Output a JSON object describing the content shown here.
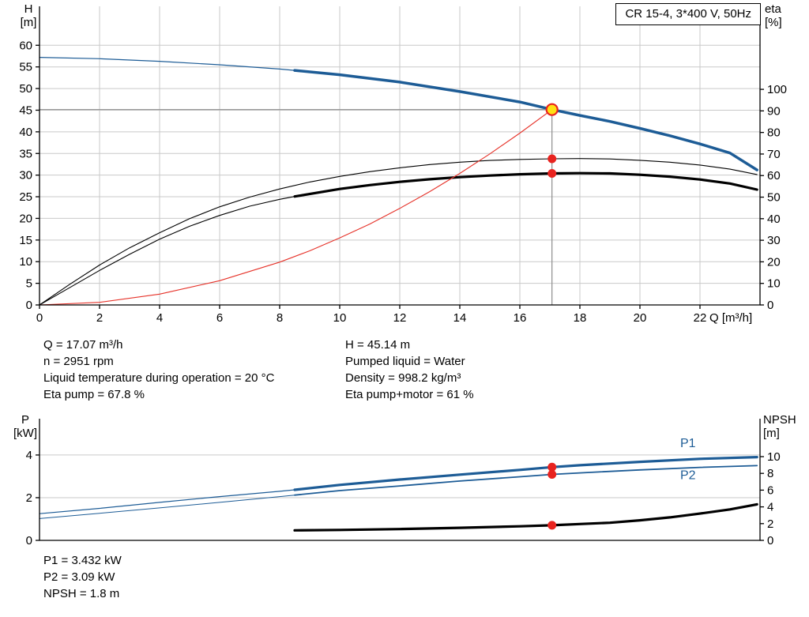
{
  "colors": {
    "curve_blue": "#1d5c96",
    "curve_red": "#e63229",
    "curve_black": "#000000",
    "grid": "#c9c9c9",
    "crosshair": "#8c8c8c",
    "marker_red": "#e8231f",
    "marker_yellow": "#ffe014",
    "axis": "#000000"
  },
  "info_top": {
    "left": [
      "Q = 17.07 m³/h",
      "n = 2951 rpm",
      "Liquid temperature during operation = 20 °C",
      "Eta pump = 67.8 %"
    ],
    "right": [
      "H = 45.14 m",
      "Pumped liquid = Water",
      "Density = 998.2 kg/m³",
      "Eta pump+motor = 61 %"
    ]
  },
  "info_bottom": [
    "P1 = 3.432 kW",
    "P2 = 3.09 kW",
    "NPSH = 1.8 m"
  ],
  "chart_data": [
    {
      "type": "line",
      "title": "CR 15-4, 3*400 V, 50Hz",
      "x_axis": {
        "label": "Q [m³/h]",
        "min": 0,
        "max": 24,
        "ticks": [
          0,
          2,
          4,
          6,
          8,
          10,
          12,
          14,
          16,
          18,
          20,
          22
        ],
        "show_labels": true,
        "grid": true
      },
      "y_left": {
        "label_lines": [
          "H",
          "[m]"
        ],
        "min": 0,
        "max": 69,
        "ticks": [
          0,
          5,
          10,
          15,
          20,
          25,
          30,
          35,
          40,
          45,
          50,
          55,
          60
        ],
        "grid": true
      },
      "y_right": {
        "label_lines": [
          "eta",
          "[%]"
        ],
        "min": 0,
        "max": 138.5,
        "ticks": [
          0,
          10,
          20,
          30,
          40,
          50,
          60,
          70,
          80,
          90,
          100
        ]
      },
      "series": [
        {
          "name": "pump-hq-curve",
          "color_key": "curve_blue",
          "axis": "left",
          "segments": [
            {
              "width": 1.2,
              "points": [
                [
                  0,
                  57.2
                ],
                [
                  2,
                  56.9
                ],
                [
                  4,
                  56.3
                ],
                [
                  6,
                  55.5
                ],
                [
                  8,
                  54.5
                ],
                [
                  8.5,
                  54.2
                ]
              ]
            },
            {
              "width": 3.5,
              "points": [
                [
                  8.5,
                  54.2
                ],
                [
                  10,
                  53.2
                ],
                [
                  12,
                  51.5
                ],
                [
                  14,
                  49.3
                ],
                [
                  16,
                  46.9
                ],
                [
                  17.07,
                  45.14
                ],
                [
                  18,
                  43.8
                ],
                [
                  19,
                  42.4
                ],
                [
                  20,
                  40.8
                ],
                [
                  21,
                  39.1
                ],
                [
                  22,
                  37.2
                ],
                [
                  23,
                  35.1
                ],
                [
                  23.9,
                  31.2
                ]
              ]
            }
          ]
        },
        {
          "name": "eta-pump-curve",
          "color_key": "curve_black",
          "axis": "right",
          "segments": [
            {
              "width": 1.1,
              "points": [
                [
                  0,
                  0
                ],
                [
                  1,
                  9.5
                ],
                [
                  2,
                  18.5
                ],
                [
                  3,
                  26.5
                ],
                [
                  4,
                  33.5
                ],
                [
                  5,
                  40
                ],
                [
                  6,
                  45.5
                ],
                [
                  7,
                  50
                ],
                [
                  8,
                  53.8
                ],
                [
                  9,
                  57
                ],
                [
                  10,
                  59.6
                ],
                [
                  11,
                  61.8
                ],
                [
                  12,
                  63.6
                ],
                [
                  13,
                  65.1
                ],
                [
                  14,
                  66.2
                ],
                [
                  15,
                  67
                ],
                [
                  16,
                  67.5
                ],
                [
                  17.07,
                  67.8
                ],
                [
                  18,
                  67.9
                ],
                [
                  19,
                  67.7
                ],
                [
                  20,
                  67.1
                ],
                [
                  21,
                  66.2
                ],
                [
                  22,
                  64.9
                ],
                [
                  23,
                  63
                ],
                [
                  23.9,
                  60.5
                ]
              ]
            }
          ]
        },
        {
          "name": "eta-pump-motor-curve",
          "color_key": "curve_black",
          "axis": "right",
          "segments": [
            {
              "width": 1.1,
              "points": [
                [
                  0,
                  0
                ],
                [
                  1,
                  8
                ],
                [
                  2,
                  16
                ],
                [
                  3,
                  23.5
                ],
                [
                  4,
                  30.5
                ],
                [
                  5,
                  36.5
                ],
                [
                  6,
                  41.5
                ],
                [
                  7,
                  45.8
                ],
                [
                  8,
                  49
                ],
                [
                  8.5,
                  50.3
                ]
              ]
            },
            {
              "width": 3.2,
              "points": [
                [
                  8.5,
                  50.3
                ],
                [
                  10,
                  53.8
                ],
                [
                  11,
                  55.6
                ],
                [
                  12,
                  57.1
                ],
                [
                  13,
                  58.3
                ],
                [
                  14,
                  59.3
                ],
                [
                  15,
                  60
                ],
                [
                  16,
                  60.6
                ],
                [
                  17.07,
                  61
                ],
                [
                  18,
                  61.1
                ],
                [
                  19,
                  61
                ],
                [
                  20,
                  60.4
                ],
                [
                  21,
                  59.5
                ],
                [
                  22,
                  58.2
                ],
                [
                  23,
                  56.3
                ],
                [
                  23.9,
                  53.5
                ]
              ]
            }
          ]
        },
        {
          "name": "system-resistance-curve",
          "color_key": "curve_red",
          "axis": "left",
          "segments": [
            {
              "width": 1.1,
              "points": [
                [
                  0,
                  0
                ],
                [
                  2,
                  0.6
                ],
                [
                  4,
                  2.5
                ],
                [
                  6,
                  5.6
                ],
                [
                  8,
                  9.9
                ],
                [
                  9,
                  12.5
                ],
                [
                  10,
                  15.5
                ],
                [
                  11,
                  18.7
                ],
                [
                  12,
                  22.3
                ],
                [
                  13,
                  26.2
                ],
                [
                  14,
                  30.4
                ],
                [
                  15,
                  34.9
                ],
                [
                  16,
                  39.7
                ],
                [
                  17.07,
                  45.14
                ]
              ]
            }
          ]
        }
      ],
      "crosshair": {
        "x": 17.07,
        "value": 45.14,
        "axis": "left"
      },
      "markers": [
        {
          "name": "duty-point",
          "x": 17.07,
          "value": 45.14,
          "axis": "left",
          "r": 7,
          "fill_key": "marker_yellow",
          "stroke_key": "marker_red",
          "stroke_width": 2.2
        },
        {
          "name": "eta-pump-point",
          "x": 17.07,
          "value": 67.8,
          "axis": "right",
          "r": 5.5,
          "fill_key": "marker_red"
        },
        {
          "name": "eta-pump-motor-point",
          "x": 17.07,
          "value": 61,
          "axis": "right",
          "r": 5.5,
          "fill_key": "marker_red"
        }
      ],
      "annotations": []
    },
    {
      "type": "line",
      "title": "",
      "x_axis": {
        "label": "",
        "min": 0,
        "max": 24,
        "ticks": [],
        "show_labels": false,
        "grid": false
      },
      "y_left": {
        "label_lines": [
          "P",
          "[kW]"
        ],
        "min": 0,
        "max": 5.7,
        "ticks": [
          0,
          2,
          4
        ],
        "grid": true
      },
      "y_right": {
        "label_lines": [
          "NPSH",
          "[m]"
        ],
        "min": 0,
        "max": 14.53,
        "ticks": [
          0,
          2,
          4,
          6,
          8,
          10
        ]
      },
      "series": [
        {
          "name": "p1-power-curve",
          "color_key": "curve_blue",
          "axis": "left",
          "segments": [
            {
              "width": 1.2,
              "points": [
                [
                  0,
                  1.25
                ],
                [
                  2,
                  1.5
                ],
                [
                  4,
                  1.78
                ],
                [
                  6,
                  2.05
                ],
                [
                  8,
                  2.3
                ],
                [
                  8.5,
                  2.37
                ]
              ]
            },
            {
              "width": 3.2,
              "points": [
                [
                  8.5,
                  2.37
                ],
                [
                  10,
                  2.6
                ],
                [
                  12,
                  2.85
                ],
                [
                  14,
                  3.08
                ],
                [
                  16,
                  3.3
                ],
                [
                  17.07,
                  3.432
                ],
                [
                  18,
                  3.52
                ],
                [
                  20,
                  3.68
                ],
                [
                  22,
                  3.82
                ],
                [
                  23.9,
                  3.9
                ]
              ]
            }
          ]
        },
        {
          "name": "p2-power-curve",
          "color_key": "curve_blue",
          "axis": "left",
          "segments": [
            {
              "width": 1,
              "points": [
                [
                  0,
                  1.02
                ],
                [
                  2,
                  1.27
                ],
                [
                  4,
                  1.52
                ],
                [
                  6,
                  1.78
                ],
                [
                  8,
                  2.05
                ],
                [
                  8.5,
                  2.12
                ]
              ]
            },
            {
              "width": 1.8,
              "points": [
                [
                  8.5,
                  2.12
                ],
                [
                  10,
                  2.33
                ],
                [
                  12,
                  2.55
                ],
                [
                  14,
                  2.78
                ],
                [
                  16,
                  2.98
                ],
                [
                  17.07,
                  3.09
                ],
                [
                  18,
                  3.16
                ],
                [
                  20,
                  3.3
                ],
                [
                  22,
                  3.42
                ],
                [
                  23.9,
                  3.5
                ]
              ]
            }
          ]
        },
        {
          "name": "npsh-curve",
          "color_key": "curve_black",
          "axis": "right",
          "segments": [
            {
              "width": 3.2,
              "points": [
                [
                  8.5,
                  1.2
                ],
                [
                  10,
                  1.25
                ],
                [
                  12,
                  1.35
                ],
                [
                  14,
                  1.5
                ],
                [
                  16,
                  1.68
                ],
                [
                  17.07,
                  1.8
                ],
                [
                  18,
                  1.95
                ],
                [
                  19,
                  2.1
                ],
                [
                  20,
                  2.4
                ],
                [
                  21,
                  2.75
                ],
                [
                  22,
                  3.2
                ],
                [
                  23,
                  3.7
                ],
                [
                  23.9,
                  4.3
                ]
              ]
            }
          ]
        }
      ],
      "markers": [
        {
          "name": "p1-point",
          "x": 17.07,
          "value": 3.432,
          "axis": "left",
          "r": 5.5,
          "fill_key": "marker_red"
        },
        {
          "name": "p2-point",
          "x": 17.07,
          "value": 3.09,
          "axis": "left",
          "r": 5.5,
          "fill_key": "marker_red"
        },
        {
          "name": "npsh-point",
          "x": 17.07,
          "value": 1.8,
          "axis": "right",
          "r": 5.5,
          "fill_key": "marker_red"
        }
      ],
      "annotations": [
        {
          "text": "P1",
          "x": 21.6,
          "value": 4.55,
          "axis": "left",
          "color_key": "curve_blue"
        },
        {
          "text": "P2",
          "x": 21.6,
          "value": 3.05,
          "axis": "left",
          "color_key": "curve_blue"
        }
      ]
    }
  ]
}
